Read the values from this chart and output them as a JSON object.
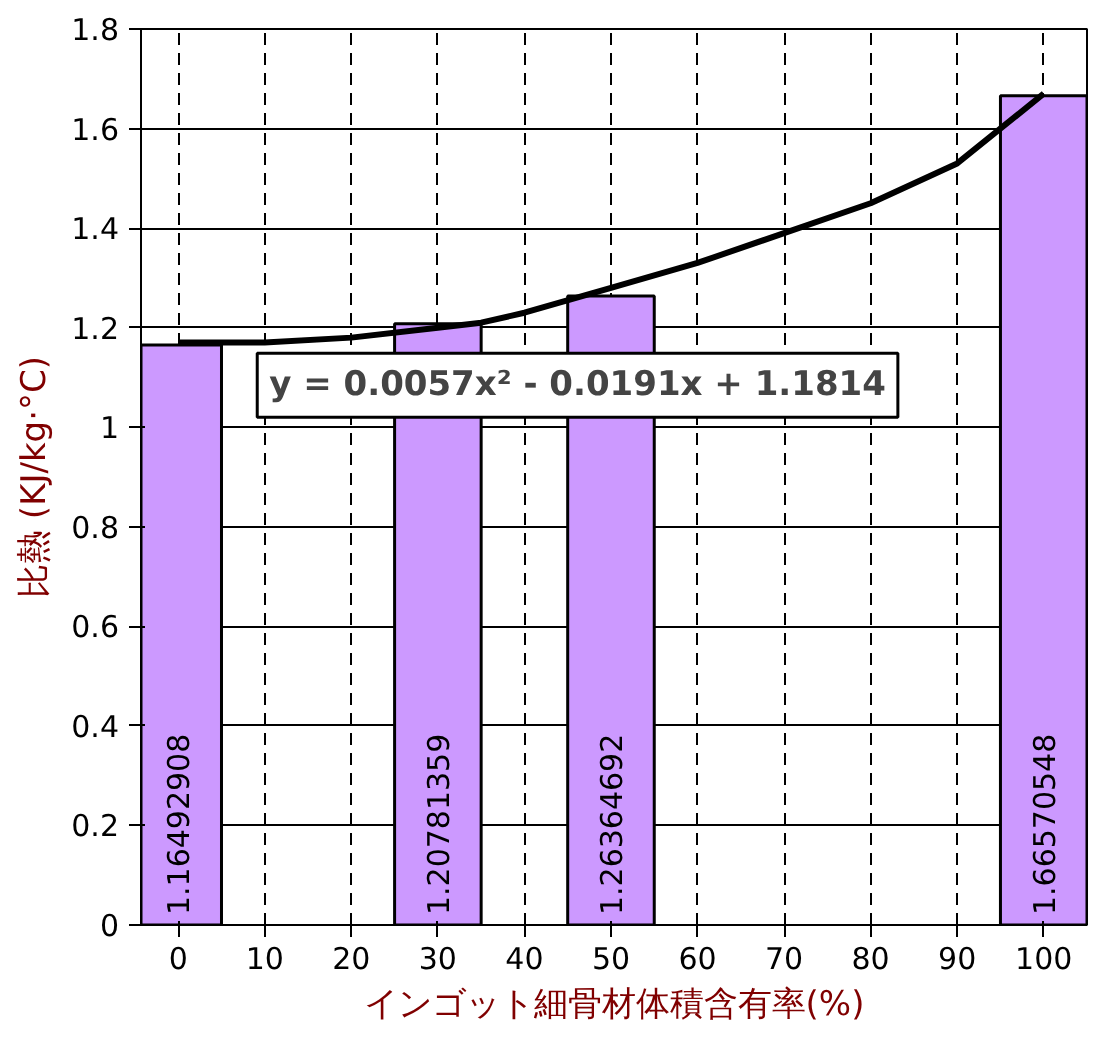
{
  "chart_data": {
    "type": "bar",
    "xlabel": "インゴット細骨材体積含有率(%)",
    "ylabel": "比熱 (KJ/kg·°C)",
    "xlim": [
      -4.3,
      105
    ],
    "ylim": [
      0,
      1.8
    ],
    "xticks": [
      0,
      10,
      20,
      30,
      40,
      50,
      60,
      70,
      80,
      90,
      100
    ],
    "yticks": [
      0,
      0.2,
      0.4,
      0.6,
      0.8,
      1,
      1.2,
      1.4,
      1.6,
      1.8
    ],
    "grid": true,
    "annotations": [
      "y = 0.0057x² - 0.0191x + 1.1814"
    ],
    "series": [
      {
        "color": "#cc99ff",
        "x": [
          0,
          30,
          50,
          100
        ],
        "values": [
          1.16492908,
          1.20781359,
          1.26364692,
          1.66570548
        ],
        "value_labels": [
          "1.16492908",
          "1.20781359",
          "1.26364692",
          "1.66570548"
        ]
      },
      {
        "type": "line",
        "color": "#000000",
        "x": [
          0,
          10,
          20,
          30,
          35,
          40,
          50,
          60,
          70,
          80,
          90,
          100
        ],
        "values": [
          1.17,
          1.17,
          1.18,
          1.2,
          1.21,
          1.23,
          1.28,
          1.33,
          1.39,
          1.45,
          1.53,
          1.67
        ]
      }
    ]
  }
}
